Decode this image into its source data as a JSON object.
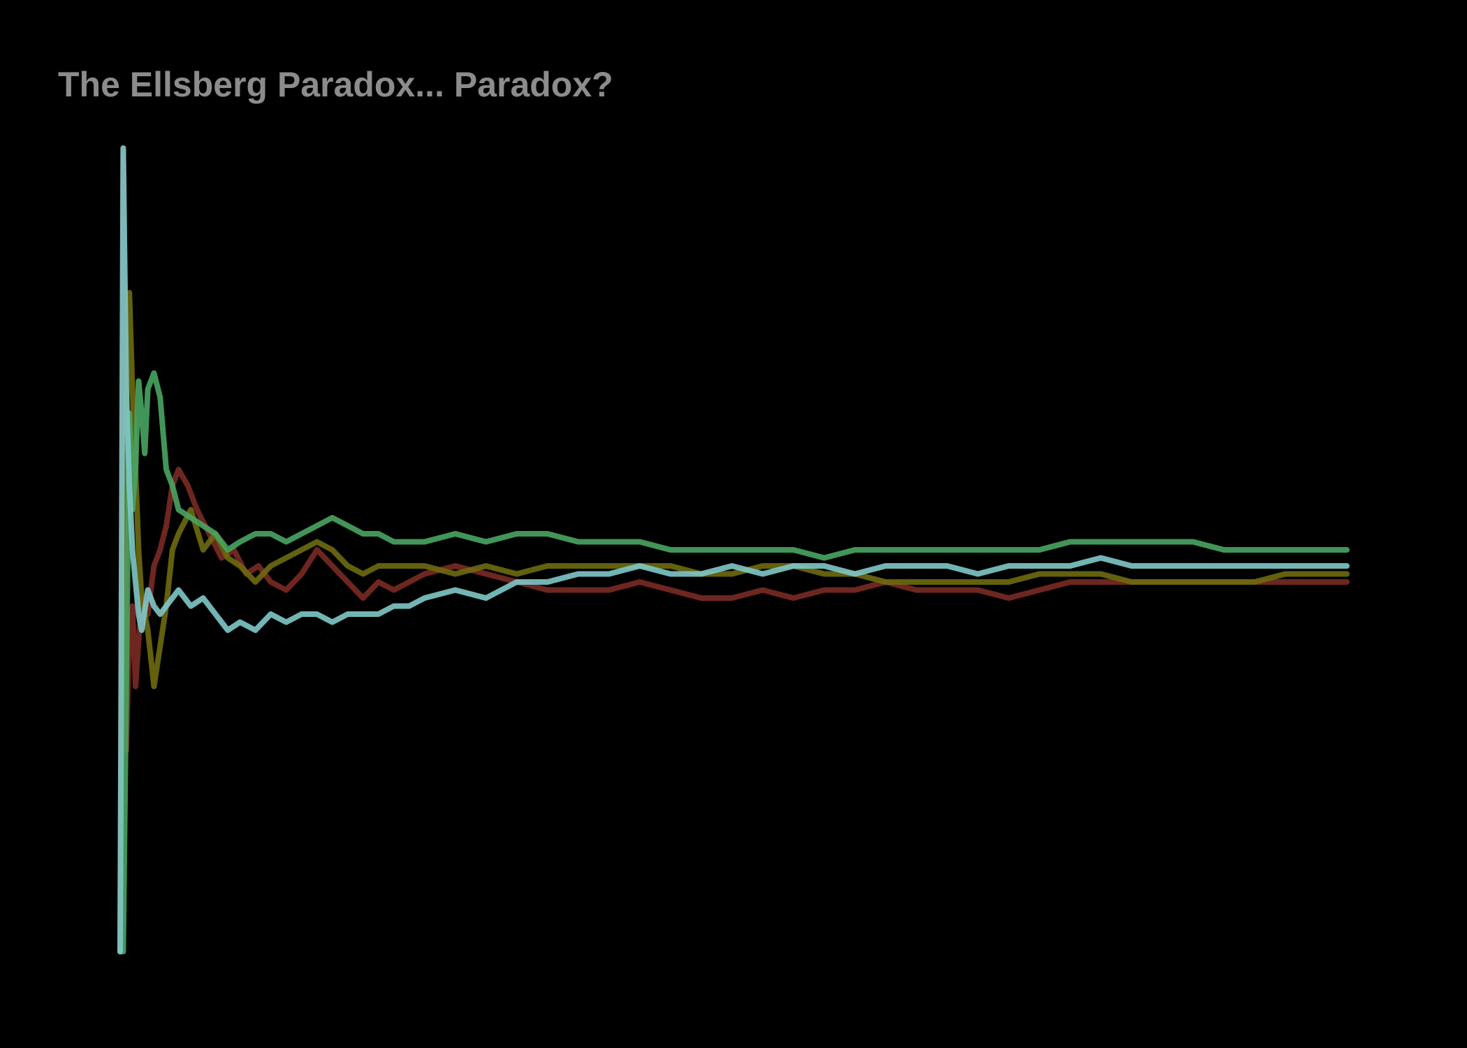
{
  "chart_data": {
    "type": "line",
    "title": "The Ellsberg Paradox... Paradox?",
    "xlabel": "",
    "ylabel": "",
    "axes_visible": false,
    "grid": false,
    "legend": "none",
    "x_range": [
      1,
      400
    ],
    "y_range": [
      0,
      1
    ],
    "colors": {
      "background": "#000000",
      "title": "#8c8c8c"
    },
    "series": [
      {
        "color": "#7a2a24",
        "points": [
          [
            1,
            0.0
          ],
          [
            2,
            1.0
          ],
          [
            3,
            0.25
          ],
          [
            4,
            0.4
          ],
          [
            5,
            0.43
          ],
          [
            6,
            0.33
          ],
          [
            8,
            0.44
          ],
          [
            10,
            0.42
          ],
          [
            12,
            0.48
          ],
          [
            14,
            0.5
          ],
          [
            16,
            0.53
          ],
          [
            18,
            0.58
          ],
          [
            20,
            0.6
          ],
          [
            23,
            0.58
          ],
          [
            26,
            0.55
          ],
          [
            30,
            0.52
          ],
          [
            34,
            0.49
          ],
          [
            38,
            0.5
          ],
          [
            42,
            0.47
          ],
          [
            46,
            0.48
          ],
          [
            50,
            0.46
          ],
          [
            55,
            0.45
          ],
          [
            60,
            0.47
          ],
          [
            65,
            0.5
          ],
          [
            70,
            0.48
          ],
          [
            75,
            0.46
          ],
          [
            80,
            0.44
          ],
          [
            85,
            0.46
          ],
          [
            90,
            0.45
          ],
          [
            95,
            0.46
          ],
          [
            100,
            0.47
          ],
          [
            110,
            0.48
          ],
          [
            120,
            0.47
          ],
          [
            130,
            0.46
          ],
          [
            140,
            0.45
          ],
          [
            150,
            0.45
          ],
          [
            160,
            0.45
          ],
          [
            170,
            0.46
          ],
          [
            180,
            0.45
          ],
          [
            190,
            0.44
          ],
          [
            200,
            0.44
          ],
          [
            210,
            0.45
          ],
          [
            220,
            0.44
          ],
          [
            230,
            0.45
          ],
          [
            240,
            0.45
          ],
          [
            250,
            0.46
          ],
          [
            260,
            0.45
          ],
          [
            270,
            0.45
          ],
          [
            280,
            0.45
          ],
          [
            290,
            0.44
          ],
          [
            300,
            0.45
          ],
          [
            310,
            0.46
          ],
          [
            320,
            0.46
          ],
          [
            330,
            0.46
          ],
          [
            340,
            0.46
          ],
          [
            350,
            0.46
          ],
          [
            360,
            0.46
          ],
          [
            370,
            0.46
          ],
          [
            380,
            0.46
          ],
          [
            390,
            0.46
          ],
          [
            400,
            0.46
          ]
        ]
      },
      {
        "color": "#6e6a10",
        "points": [
          [
            1,
            0.0
          ],
          [
            2,
            0.5
          ],
          [
            3,
            0.67
          ],
          [
            4,
            0.82
          ],
          [
            5,
            0.7
          ],
          [
            6,
            0.6
          ],
          [
            7,
            0.5
          ],
          [
            8,
            0.44
          ],
          [
            10,
            0.4
          ],
          [
            12,
            0.33
          ],
          [
            14,
            0.38
          ],
          [
            16,
            0.43
          ],
          [
            18,
            0.5
          ],
          [
            20,
            0.52
          ],
          [
            24,
            0.55
          ],
          [
            28,
            0.5
          ],
          [
            32,
            0.52
          ],
          [
            36,
            0.49
          ],
          [
            40,
            0.48
          ],
          [
            45,
            0.46
          ],
          [
            50,
            0.48
          ],
          [
            55,
            0.49
          ],
          [
            60,
            0.5
          ],
          [
            65,
            0.51
          ],
          [
            70,
            0.5
          ],
          [
            75,
            0.48
          ],
          [
            80,
            0.47
          ],
          [
            85,
            0.48
          ],
          [
            90,
            0.48
          ],
          [
            95,
            0.48
          ],
          [
            100,
            0.48
          ],
          [
            110,
            0.47
          ],
          [
            120,
            0.48
          ],
          [
            130,
            0.47
          ],
          [
            140,
            0.48
          ],
          [
            150,
            0.48
          ],
          [
            160,
            0.48
          ],
          [
            170,
            0.48
          ],
          [
            180,
            0.48
          ],
          [
            190,
            0.47
          ],
          [
            200,
            0.47
          ],
          [
            210,
            0.48
          ],
          [
            220,
            0.48
          ],
          [
            230,
            0.47
          ],
          [
            240,
            0.47
          ],
          [
            250,
            0.46
          ],
          [
            260,
            0.46
          ],
          [
            270,
            0.46
          ],
          [
            280,
            0.46
          ],
          [
            290,
            0.46
          ],
          [
            300,
            0.47
          ],
          [
            310,
            0.47
          ],
          [
            320,
            0.47
          ],
          [
            330,
            0.46
          ],
          [
            340,
            0.46
          ],
          [
            350,
            0.46
          ],
          [
            360,
            0.46
          ],
          [
            370,
            0.46
          ],
          [
            380,
            0.47
          ],
          [
            390,
            0.47
          ],
          [
            400,
            0.47
          ]
        ]
      },
      {
        "color": "#49a562",
        "points": [
          [
            1,
            0.0
          ],
          [
            2,
            0.0
          ],
          [
            3,
            0.33
          ],
          [
            4,
            0.67
          ],
          [
            5,
            0.55
          ],
          [
            6,
            0.6
          ],
          [
            7,
            0.71
          ],
          [
            8,
            0.67
          ],
          [
            9,
            0.62
          ],
          [
            10,
            0.7
          ],
          [
            12,
            0.72
          ],
          [
            14,
            0.69
          ],
          [
            16,
            0.6
          ],
          [
            18,
            0.58
          ],
          [
            20,
            0.55
          ],
          [
            24,
            0.54
          ],
          [
            28,
            0.53
          ],
          [
            32,
            0.52
          ],
          [
            36,
            0.5
          ],
          [
            40,
            0.51
          ],
          [
            45,
            0.52
          ],
          [
            50,
            0.52
          ],
          [
            55,
            0.51
          ],
          [
            60,
            0.52
          ],
          [
            65,
            0.53
          ],
          [
            70,
            0.54
          ],
          [
            75,
            0.53
          ],
          [
            80,
            0.52
          ],
          [
            85,
            0.52
          ],
          [
            90,
            0.51
          ],
          [
            95,
            0.51
          ],
          [
            100,
            0.51
          ],
          [
            110,
            0.52
          ],
          [
            120,
            0.51
          ],
          [
            130,
            0.52
          ],
          [
            140,
            0.52
          ],
          [
            150,
            0.51
          ],
          [
            160,
            0.51
          ],
          [
            170,
            0.51
          ],
          [
            180,
            0.5
          ],
          [
            190,
            0.5
          ],
          [
            200,
            0.5
          ],
          [
            210,
            0.5
          ],
          [
            220,
            0.5
          ],
          [
            230,
            0.49
          ],
          [
            240,
            0.5
          ],
          [
            250,
            0.5
          ],
          [
            260,
            0.5
          ],
          [
            270,
            0.5
          ],
          [
            280,
            0.5
          ],
          [
            290,
            0.5
          ],
          [
            300,
            0.5
          ],
          [
            310,
            0.51
          ],
          [
            320,
            0.51
          ],
          [
            330,
            0.51
          ],
          [
            340,
            0.51
          ],
          [
            350,
            0.51
          ],
          [
            360,
            0.5
          ],
          [
            370,
            0.5
          ],
          [
            380,
            0.5
          ],
          [
            390,
            0.5
          ],
          [
            400,
            0.5
          ]
        ]
      },
      {
        "color": "#80c8c8",
        "points": [
          [
            1,
            0.0
          ],
          [
            2,
            1.0
          ],
          [
            3,
            0.7
          ],
          [
            4,
            0.58
          ],
          [
            5,
            0.5
          ],
          [
            6,
            0.46
          ],
          [
            7,
            0.42
          ],
          [
            8,
            0.4
          ],
          [
            10,
            0.45
          ],
          [
            12,
            0.43
          ],
          [
            14,
            0.42
          ],
          [
            16,
            0.43
          ],
          [
            18,
            0.44
          ],
          [
            20,
            0.45
          ],
          [
            24,
            0.43
          ],
          [
            28,
            0.44
          ],
          [
            32,
            0.42
          ],
          [
            36,
            0.4
          ],
          [
            40,
            0.41
          ],
          [
            45,
            0.4
          ],
          [
            50,
            0.42
          ],
          [
            55,
            0.41
          ],
          [
            60,
            0.42
          ],
          [
            65,
            0.42
          ],
          [
            70,
            0.41
          ],
          [
            75,
            0.42
          ],
          [
            80,
            0.42
          ],
          [
            85,
            0.42
          ],
          [
            90,
            0.43
          ],
          [
            95,
            0.43
          ],
          [
            100,
            0.44
          ],
          [
            110,
            0.45
          ],
          [
            120,
            0.44
          ],
          [
            130,
            0.46
          ],
          [
            140,
            0.46
          ],
          [
            150,
            0.47
          ],
          [
            160,
            0.47
          ],
          [
            170,
            0.48
          ],
          [
            180,
            0.47
          ],
          [
            190,
            0.47
          ],
          [
            200,
            0.48
          ],
          [
            210,
            0.47
          ],
          [
            220,
            0.48
          ],
          [
            230,
            0.48
          ],
          [
            240,
            0.47
          ],
          [
            250,
            0.48
          ],
          [
            260,
            0.48
          ],
          [
            270,
            0.48
          ],
          [
            280,
            0.47
          ],
          [
            290,
            0.48
          ],
          [
            300,
            0.48
          ],
          [
            310,
            0.48
          ],
          [
            320,
            0.49
          ],
          [
            330,
            0.48
          ],
          [
            340,
            0.48
          ],
          [
            350,
            0.48
          ],
          [
            360,
            0.48
          ],
          [
            370,
            0.48
          ],
          [
            380,
            0.48
          ],
          [
            390,
            0.48
          ],
          [
            400,
            0.48
          ]
        ]
      }
    ]
  }
}
